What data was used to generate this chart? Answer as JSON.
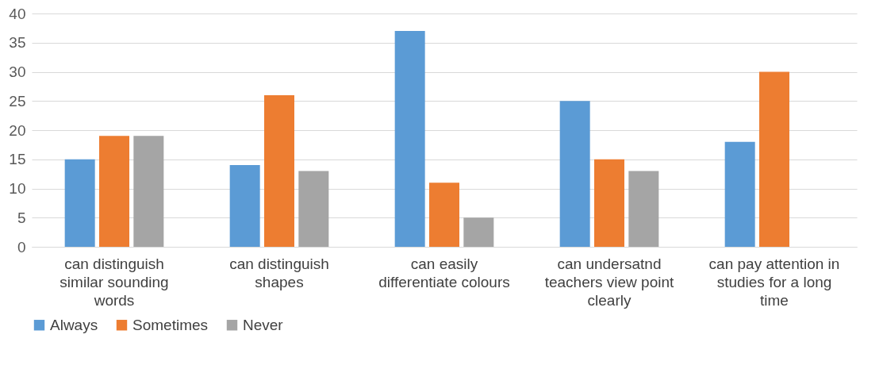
{
  "chart_data": {
    "type": "bar",
    "categories": [
      "can distinguish similar sounding words",
      "can distinguish shapes",
      "can easily differentiate colours",
      "can undersatnd teachers view point clearly",
      "can pay attention in studies for a long time"
    ],
    "series": [
      {
        "name": "Always",
        "color": "#5b9bd5",
        "values": [
          15,
          14,
          37,
          25,
          18
        ]
      },
      {
        "name": "Sometimes",
        "color": "#ed7d31",
        "values": [
          19,
          26,
          11,
          15,
          30
        ]
      },
      {
        "name": "Never",
        "color": "#a5a5a5",
        "values": [
          19,
          13,
          5,
          13,
          null
        ]
      }
    ],
    "ylim": [
      0,
      40
    ],
    "yticks": [
      0,
      5,
      10,
      15,
      20,
      25,
      30,
      35,
      40
    ],
    "grid": "y",
    "legend": "bottom"
  }
}
